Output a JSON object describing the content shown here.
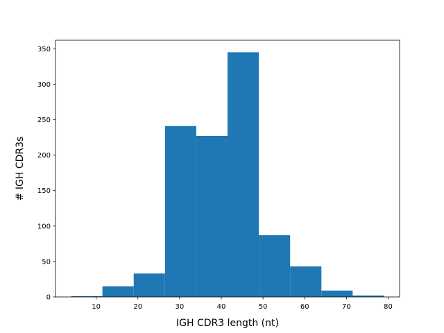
{
  "chart_data": {
    "type": "bar",
    "title": "",
    "xlabel": "IGH CDR3 length (nt)",
    "ylabel": "# IGH CDR3s",
    "xlim": [
      0.25,
      82.75
    ],
    "ylim": [
      0,
      362
    ],
    "x_ticks": [
      10,
      20,
      30,
      40,
      50,
      60,
      70,
      80
    ],
    "y_ticks": [
      0,
      50,
      100,
      150,
      200,
      250,
      300,
      350
    ],
    "bin_edges": [
      4,
      11.5,
      19,
      26.5,
      34,
      41.5,
      49,
      56.5,
      64,
      71.5,
      79
    ],
    "values": [
      1,
      15,
      33,
      241,
      227,
      345,
      87,
      43,
      9,
      2
    ],
    "grid": false,
    "bar_color": "#1f77b4"
  }
}
